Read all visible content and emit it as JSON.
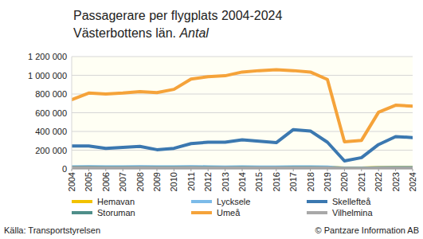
{
  "chart_data": {
    "type": "line",
    "title": "Passagerare per flygplats 2004-2024",
    "subtitle": "Västerbottens län.",
    "ylabel": "Antal",
    "annotations": [
      "Källa: Transportstyrelsen",
      "© Pantzare Information AB"
    ],
    "categories": [
      "2004",
      "2005",
      "2006",
      "2007",
      "2008",
      "2009",
      "2010",
      "2011",
      "2012",
      "2013",
      "2014",
      "2015",
      "2016",
      "2017",
      "2018",
      "2019",
      "2020",
      "2021",
      "2022",
      "2023",
      "2024"
    ],
    "series": [
      {
        "name": "Hemavan",
        "color": "#f2c200",
        "values": [
          16000,
          17000,
          17000,
          18000,
          18000,
          17000,
          17000,
          18000,
          16000,
          15000,
          17000,
          16000,
          16000,
          17000,
          18000,
          17000,
          8000,
          9000,
          14000,
          15000,
          14000
        ]
      },
      {
        "name": "Lycksele",
        "color": "#7cbbe9",
        "values": [
          22000,
          23000,
          22000,
          22000,
          23000,
          21000,
          22000,
          23000,
          22000,
          20000,
          21000,
          20000,
          20000,
          21000,
          21000,
          19000,
          6000,
          7000,
          12000,
          13000,
          13000
        ]
      },
      {
        "name": "Skellefteå",
        "color": "#3b78b0",
        "values": [
          245000,
          245000,
          220000,
          230000,
          240000,
          205000,
          220000,
          270000,
          285000,
          285000,
          310000,
          295000,
          280000,
          420000,
          405000,
          285000,
          85000,
          120000,
          260000,
          345000,
          335000
        ]
      },
      {
        "name": "Storuman",
        "color": "#4f8f8a",
        "values": [
          14000,
          14000,
          13000,
          13000,
          13000,
          12000,
          12000,
          13000,
          12000,
          11000,
          12000,
          11000,
          11000,
          12000,
          12000,
          11000,
          5000,
          5000,
          9000,
          10000,
          10000
        ]
      },
      {
        "name": "Umeå",
        "color": "#f5a33a",
        "values": [
          740000,
          810000,
          800000,
          810000,
          825000,
          815000,
          850000,
          960000,
          985000,
          995000,
          1035000,
          1050000,
          1060000,
          1050000,
          1035000,
          955000,
          290000,
          305000,
          605000,
          680000,
          670000
        ]
      },
      {
        "name": "Vilhelmina",
        "color": "#a8a8a8",
        "values": [
          10000,
          10000,
          9000,
          9000,
          10000,
          9000,
          9000,
          10000,
          9000,
          9000,
          9000,
          9000,
          9000,
          9000,
          9000,
          8000,
          4000,
          4000,
          7000,
          7000,
          7000
        ]
      }
    ],
    "ylim": [
      0,
      1200000
    ],
    "yticks": [
      0,
      {
        "value": 200000,
        "label": "200 000"
      },
      {
        "value": 400000,
        "label": "400 000"
      },
      {
        "value": 600000,
        "label": "600 000"
      },
      {
        "value": 800000,
        "label": "800 000"
      },
      {
        "value": 1000000,
        "label": "1 000 000"
      },
      {
        "value": 1200000,
        "label": "1 200 000"
      }
    ],
    "grid": true,
    "legend": "bottom"
  }
}
